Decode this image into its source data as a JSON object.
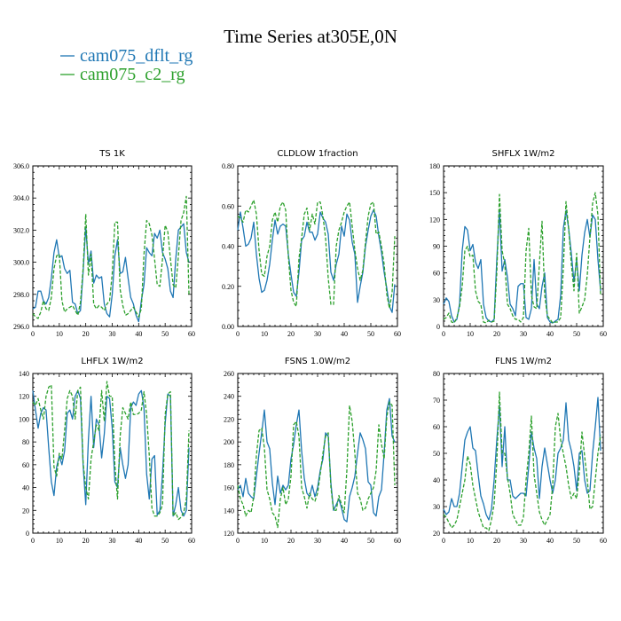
{
  "figure": {
    "title": "Time Series at305E,0N",
    "legend": [
      {
        "label": "cam075_dflt_rg",
        "color": "#1f77b4",
        "dash": "solid"
      },
      {
        "label": "cam075_c2_rg",
        "color": "#2ca02c",
        "dash": "dashed"
      }
    ]
  },
  "chart_data": [
    {
      "type": "line",
      "title": "TS   1K",
      "xlim": [
        0,
        60
      ],
      "ylim": [
        296.0,
        306.0
      ],
      "xticks": [
        0,
        10,
        20,
        30,
        40,
        50,
        60
      ],
      "yticks": [
        296.0,
        298.0,
        300.0,
        302.0,
        304.0,
        306.0
      ],
      "ytick_labels": [
        "296.0",
        "298.0",
        "300.0",
        "302.0",
        "304.0",
        "306.0"
      ],
      "series": [
        {
          "name": "cam075_dflt_rg",
          "values": [
            297.1,
            297.2,
            298.2,
            298.2,
            297.6,
            297.4,
            297.8,
            299.0,
            300.6,
            301.4,
            300.3,
            300.4,
            299.6,
            299.3,
            299.5,
            297.5,
            297.4,
            296.8,
            297.0,
            299.4,
            302.2,
            299.9,
            300.7,
            298.7,
            299.2,
            299.0,
            299.1,
            297.4,
            296.8,
            296.6,
            298.0,
            300.4,
            301.4,
            299.3,
            299.4,
            300.3,
            299.0,
            297.8,
            297.4,
            296.7,
            296.3,
            297.6,
            298.6,
            300.9,
            300.6,
            300.4,
            301.8,
            301.5,
            302.0,
            300.6,
            300.2,
            299.6,
            298.2,
            297.8,
            300.2,
            302.0,
            302.2,
            302.4,
            300.6,
            300.0
          ]
        },
        {
          "name": "cam075_c2_rg",
          "values": [
            296.8,
            296.6,
            296.5,
            296.9,
            297.6,
            297.1,
            297.0,
            297.8,
            299.6,
            300.4,
            300.5,
            297.6,
            296.9,
            297.1,
            297.2,
            297.3,
            297.0,
            296.7,
            297.5,
            299.6,
            303.0,
            299.2,
            300.5,
            297.4,
            297.1,
            297.3,
            297.2,
            297.0,
            297.4,
            297.6,
            299.3,
            302.5,
            302.5,
            298.3,
            297.3,
            296.7,
            296.8,
            297.0,
            297.2,
            296.9,
            296.6,
            297.1,
            300.5,
            302.6,
            302.4,
            301.7,
            300.2,
            298.6,
            298.5,
            300.2,
            302.3,
            301.9,
            300.2,
            298.6,
            298.4,
            300.4,
            302.6,
            303.1,
            304.1,
            298.0
          ]
        }
      ]
    },
    {
      "type": "line",
      "title": "CLDLOW   1fraction",
      "xlim": [
        0,
        60
      ],
      "ylim": [
        0.0,
        0.8
      ],
      "xticks": [
        0,
        10,
        20,
        30,
        40,
        50,
        60
      ],
      "yticks": [
        0.0,
        0.2,
        0.4,
        0.6,
        0.8
      ],
      "ytick_labels": [
        "0.00",
        "0.20",
        "0.40",
        "0.60",
        "0.80"
      ],
      "series": [
        {
          "name": "cam075_dflt_rg",
          "values": [
            0.48,
            0.57,
            0.49,
            0.4,
            0.41,
            0.44,
            0.52,
            0.36,
            0.24,
            0.17,
            0.18,
            0.23,
            0.31,
            0.43,
            0.53,
            0.46,
            0.5,
            0.51,
            0.5,
            0.36,
            0.26,
            0.17,
            0.15,
            0.27,
            0.43,
            0.45,
            0.52,
            0.47,
            0.47,
            0.43,
            0.46,
            0.57,
            0.54,
            0.52,
            0.46,
            0.27,
            0.23,
            0.31,
            0.36,
            0.5,
            0.45,
            0.56,
            0.53,
            0.42,
            0.36,
            0.12,
            0.2,
            0.27,
            0.4,
            0.48,
            0.55,
            0.58,
            0.55,
            0.45,
            0.37,
            0.27,
            0.19,
            0.1,
            0.07,
            0.21
          ]
        },
        {
          "name": "cam075_c2_rg",
          "values": [
            0.55,
            0.54,
            0.52,
            0.58,
            0.57,
            0.6,
            0.63,
            0.56,
            0.38,
            0.26,
            0.25,
            0.35,
            0.4,
            0.53,
            0.57,
            0.52,
            0.6,
            0.62,
            0.58,
            0.35,
            0.18,
            0.12,
            0.1,
            0.34,
            0.44,
            0.56,
            0.59,
            0.48,
            0.56,
            0.51,
            0.62,
            0.62,
            0.55,
            0.44,
            0.24,
            0.11,
            0.11,
            0.4,
            0.48,
            0.52,
            0.57,
            0.6,
            0.62,
            0.5,
            0.38,
            0.29,
            0.23,
            0.28,
            0.42,
            0.55,
            0.61,
            0.62,
            0.46,
            0.47,
            0.4,
            0.31,
            0.16,
            0.09,
            0.17,
            0.45
          ]
        }
      ]
    },
    {
      "type": "line",
      "title": "SHFLX   1W/m2",
      "xlim": [
        0,
        60
      ],
      "ylim": [
        0,
        180
      ],
      "xticks": [
        0,
        10,
        20,
        30,
        40,
        50,
        60
      ],
      "yticks": [
        0,
        30,
        60,
        90,
        120,
        150,
        180
      ],
      "ytick_labels": [
        "0",
        "30",
        "60",
        "90",
        "120",
        "150",
        "180"
      ],
      "series": [
        {
          "name": "cam075_dflt_rg",
          "values": [
            25,
            32,
            28,
            12,
            5,
            8,
            25,
            85,
            112,
            108,
            85,
            92,
            72,
            65,
            75,
            25,
            10,
            6,
            5,
            8,
            75,
            130,
            62,
            75,
            55,
            25,
            20,
            12,
            45,
            48,
            48,
            10,
            8,
            20,
            75,
            25,
            20,
            45,
            60,
            10,
            5,
            4,
            6,
            8,
            35,
            110,
            130,
            110,
            82,
            50,
            75,
            40,
            80,
            105,
            120,
            100,
            125,
            120,
            75,
            40
          ]
        },
        {
          "name": "cam075_c2_rg",
          "values": [
            8,
            10,
            15,
            5,
            4,
            10,
            22,
            45,
            85,
            90,
            78,
            80,
            40,
            28,
            25,
            5,
            4,
            7,
            5,
            6,
            60,
            148,
            85,
            70,
            25,
            20,
            12,
            8,
            8,
            5,
            10,
            85,
            110,
            35,
            22,
            20,
            70,
            118,
            35,
            12,
            8,
            4,
            5,
            5,
            10,
            65,
            140,
            110,
            70,
            40,
            82,
            15,
            22,
            30,
            58,
            100,
            138,
            150,
            125,
            35
          ]
        }
      ]
    },
    {
      "type": "line",
      "title": "LHFLX   1W/m2",
      "xlim": [
        0,
        60
      ],
      "ylim": [
        0,
        140
      ],
      "xticks": [
        0,
        10,
        20,
        30,
        40,
        50,
        60
      ],
      "yticks": [
        0,
        20,
        40,
        60,
        80,
        100,
        120,
        140
      ],
      "ytick_labels": [
        "0",
        "20",
        "40",
        "60",
        "80",
        "100",
        "120",
        "140"
      ],
      "series": [
        {
          "name": "cam075_dflt_rg",
          "values": [
            125,
            108,
            92,
            105,
            110,
            108,
            75,
            45,
            33,
            58,
            68,
            60,
            72,
            105,
            108,
            100,
            120,
            125,
            118,
            60,
            25,
            82,
            120,
            75,
            100,
            95,
            66,
            87,
            120,
            118,
            92,
            45,
            40,
            75,
            60,
            48,
            60,
            110,
            115,
            112,
            122,
            125,
            110,
            52,
            30,
            65,
            68,
            16,
            20,
            52,
            96,
            122,
            120,
            15,
            25,
            40,
            20,
            15,
            20,
            75
          ]
        },
        {
          "name": "cam075_c2_rg",
          "values": [
            115,
            112,
            118,
            108,
            100,
            120,
            128,
            130,
            58,
            50,
            70,
            65,
            90,
            118,
            125,
            120,
            100,
            125,
            128,
            62,
            40,
            30,
            65,
            80,
            95,
            90,
            125,
            98,
            133,
            120,
            120,
            60,
            30,
            85,
            110,
            105,
            100,
            115,
            104,
            104,
            105,
            108,
            124,
            104,
            68,
            22,
            15,
            15,
            18,
            25,
            104,
            122,
            124,
            15,
            18,
            12,
            14,
            18,
            30,
            90
          ]
        }
      ]
    },
    {
      "type": "line",
      "title": "FSNS   1.0W/m2",
      "xlim": [
        0,
        60
      ],
      "ylim": [
        120,
        260
      ],
      "xticks": [
        0,
        10,
        20,
        30,
        40,
        50,
        60
      ],
      "yticks": [
        120,
        140,
        160,
        180,
        200,
        220,
        240,
        260
      ],
      "ytick_labels": [
        "120",
        "140",
        "160",
        "180",
        "200",
        "220",
        "240",
        "260"
      ],
      "series": [
        {
          "name": "cam075_dflt_rg",
          "values": [
            158,
            162,
            152,
            168,
            155,
            152,
            150,
            170,
            190,
            208,
            228,
            200,
            194,
            164,
            145,
            170,
            155,
            162,
            158,
            162,
            185,
            198,
            215,
            228,
            192,
            168,
            155,
            152,
            162,
            152,
            160,
            175,
            185,
            208,
            205,
            164,
            140,
            145,
            150,
            142,
            132,
            130,
            152,
            160,
            170,
            190,
            208,
            202,
            194,
            165,
            162,
            138,
            135,
            152,
            158,
            190,
            228,
            238,
            205,
            200
          ]
        },
        {
          "name": "cam075_c2_rg",
          "values": [
            162,
            150,
            145,
            135,
            140,
            138,
            152,
            188,
            210,
            212,
            195,
            158,
            150,
            138,
            135,
            125,
            150,
            160,
            145,
            150,
            170,
            215,
            218,
            205,
            160,
            152,
            142,
            155,
            150,
            148,
            155,
            172,
            190,
            205,
            208,
            160,
            140,
            140,
            153,
            145,
            138,
            175,
            232,
            218,
            190,
            155,
            150,
            140,
            142,
            150,
            155,
            160,
            175,
            215,
            198,
            185,
            222,
            235,
            232,
            162
          ]
        }
      ]
    },
    {
      "type": "line",
      "title": "FLNS   1W/m2",
      "xlim": [
        0,
        60
      ],
      "ylim": [
        20,
        80
      ],
      "xticks": [
        0,
        10,
        20,
        30,
        40,
        50,
        60
      ],
      "yticks": [
        20,
        30,
        40,
        50,
        60,
        70,
        80
      ],
      "ytick_labels": [
        "20",
        "30",
        "40",
        "50",
        "60",
        "70",
        "80"
      ],
      "series": [
        {
          "name": "cam075_dflt_rg",
          "values": [
            29,
            27,
            28,
            33,
            30,
            30,
            35,
            45,
            55,
            58,
            60,
            52,
            51,
            42,
            34,
            31,
            27,
            25,
            29,
            40,
            55,
            68,
            45,
            60,
            40,
            40,
            34,
            33,
            34,
            35,
            35,
            34,
            45,
            58,
            52,
            48,
            33,
            45,
            52,
            46,
            40,
            35,
            40,
            50,
            52,
            55,
            69,
            55,
            51,
            45,
            36,
            50,
            51,
            40,
            35,
            36,
            50,
            60,
            71,
            51
          ]
        },
        {
          "name": "cam075_c2_rg",
          "values": [
            27,
            26,
            24,
            22,
            23,
            25,
            30,
            35,
            40,
            49,
            46,
            38,
            33,
            28,
            25,
            22,
            22,
            21,
            25,
            31,
            47,
            73,
            50,
            50,
            41,
            35,
            27,
            25,
            23,
            23,
            26,
            40,
            50,
            64,
            42,
            35,
            28,
            25,
            23,
            25,
            27,
            38,
            60,
            65,
            55,
            50,
            45,
            38,
            33,
            35,
            33,
            43,
            58,
            49,
            40,
            29,
            30,
            40,
            50,
            57
          ]
        }
      ]
    }
  ]
}
